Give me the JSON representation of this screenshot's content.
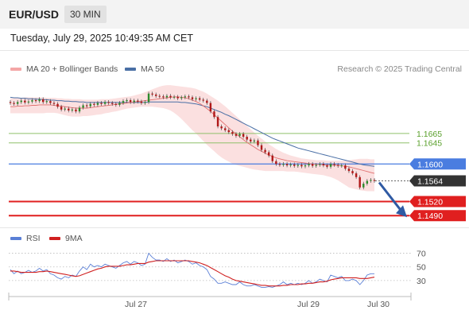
{
  "header": {
    "symbol": "EUR/USD",
    "timeframe": "30 MIN"
  },
  "datetime": "Tuesday, July 29, 2025 10:49:35 AM CET",
  "credit": "Research © 2025 Trading Central",
  "colors": {
    "bollinger": "#f4a6a6",
    "ma20": "#e07070",
    "ma50": "#4a6fa5",
    "support_red": "#e01f1f",
    "resistance_green": "#8fc06a",
    "pivot_blue": "#4a7de0",
    "last_price": "#333333",
    "rsi": "#5a7fd6",
    "rsi_ma": "#d02020",
    "candle_up": "#2d8c2d",
    "candle_down": "#b01818"
  },
  "chart_data": [
    {
      "type": "candlestick",
      "legend": [
        {
          "name": "MA 20 + Bollinger Bands",
          "color": "#f4a6a6"
        },
        {
          "name": "MA 50",
          "color": "#4a6fa5"
        }
      ],
      "ylim": [
        1.147,
        1.178
      ],
      "x_ticks": [
        "Jul 27",
        "Jul 29",
        "Jul 30"
      ],
      "levels": [
        {
          "value": 1.1665,
          "label": "1.1665",
          "kind": "resistance"
        },
        {
          "value": 1.1645,
          "label": "1.1645",
          "kind": "resistance"
        },
        {
          "value": 1.16,
          "label": "1.1600",
          "kind": "pivot"
        },
        {
          "value": 1.1564,
          "label": "1.1564",
          "kind": "last"
        },
        {
          "value": 1.152,
          "label": "1.1520",
          "kind": "support"
        },
        {
          "value": 1.149,
          "label": "1.1490",
          "kind": "support"
        }
      ],
      "close": [
        1.173,
        1.1728,
        1.1732,
        1.1735,
        1.1731,
        1.1733,
        1.1736,
        1.1734,
        1.1738,
        1.1732,
        1.1734,
        1.173,
        1.1728,
        1.1722,
        1.1716,
        1.1718,
        1.1714,
        1.1716,
        1.1712,
        1.172,
        1.1725,
        1.1723,
        1.1728,
        1.1726,
        1.173,
        1.1728,
        1.1732,
        1.173,
        1.1728,
        1.1726,
        1.173,
        1.1734,
        1.1736,
        1.1732,
        1.1735,
        1.1733,
        1.173,
        1.1732,
        1.175,
        1.1748,
        1.1745,
        1.1744,
        1.1742,
        1.1745,
        1.1742,
        1.1743,
        1.174,
        1.1742,
        1.1744,
        1.1742,
        1.1738,
        1.174,
        1.1737,
        1.1735,
        1.173,
        1.1712,
        1.17,
        1.168,
        1.1676,
        1.1672,
        1.1668,
        1.1664,
        1.166,
        1.1664,
        1.1658,
        1.1652,
        1.1648,
        1.165,
        1.164,
        1.163,
        1.1625,
        1.1618,
        1.1606,
        1.16,
        1.1598,
        1.16,
        1.1597,
        1.1599,
        1.1596,
        1.1598,
        1.1595,
        1.1597,
        1.16,
        1.1596,
        1.1598,
        1.16,
        1.1597,
        1.1594,
        1.16,
        1.1598,
        1.1596,
        1.1597,
        1.159,
        1.1585,
        1.158,
        1.1572,
        1.155,
        1.1558,
        1.1564,
        1.1566,
        1.1564
      ],
      "ma20": [
        1.1722,
        1.1722,
        1.1723,
        1.1723,
        1.1724,
        1.1724,
        1.1725,
        1.1725,
        1.1726,
        1.1726,
        1.1726,
        1.1726,
        1.1725,
        1.1724,
        1.1723,
        1.1722,
        1.1721,
        1.172,
        1.1719,
        1.1719,
        1.1719,
        1.1719,
        1.172,
        1.1721,
        1.1722,
        1.1723,
        1.1724,
        1.1725,
        1.1726,
        1.1727,
        1.1728,
        1.1729,
        1.173,
        1.1731,
        1.1732,
        1.1733,
        1.1734,
        1.1735,
        1.1736,
        1.1737,
        1.1738,
        1.1739,
        1.174,
        1.1741,
        1.1742,
        1.1743,
        1.1743,
        1.1742,
        1.1741,
        1.1739,
        1.1736,
        1.1733,
        1.1729,
        1.1724,
        1.1718,
        1.1712,
        1.1705,
        1.1698,
        1.1691,
        1.1684,
        1.1677,
        1.167,
        1.1664,
        1.1658,
        1.1652,
        1.1646,
        1.1641,
        1.1636,
        1.1631,
        1.1627,
        1.1623,
        1.1619,
        1.1616,
        1.1613,
        1.1611,
        1.1609,
        1.1607,
        1.1606,
        1.1605,
        1.1604,
        1.1603,
        1.1602,
        1.1601,
        1.16,
        1.1599,
        1.1599,
        1.1598,
        1.1598,
        1.1598,
        1.1597,
        1.1597,
        1.1596,
        1.1595,
        1.1594,
        1.1592,
        1.159,
        1.1588,
        1.1586,
        1.1584,
        1.1582,
        1.158
      ],
      "bb_upper": [
        1.174,
        1.174,
        1.1741,
        1.1741,
        1.1742,
        1.1742,
        1.1742,
        1.1742,
        1.1742,
        1.1742,
        1.1741,
        1.1741,
        1.1741,
        1.174,
        1.174,
        1.1739,
        1.1739,
        1.1738,
        1.1738,
        1.1738,
        1.1737,
        1.1737,
        1.1737,
        1.1737,
        1.1737,
        1.1738,
        1.1738,
        1.1738,
        1.1739,
        1.174,
        1.1741,
        1.1742,
        1.1743,
        1.1744,
        1.1746,
        1.1748,
        1.175,
        1.1753,
        1.1756,
        1.1759,
        1.1762,
        1.1765,
        1.1767,
        1.1768,
        1.1768,
        1.1767,
        1.1766,
        1.1765,
        1.1764,
        1.1763,
        1.1762,
        1.176,
        1.1757,
        1.1754,
        1.175,
        1.1745,
        1.174,
        1.1735,
        1.1729,
        1.1723,
        1.1716,
        1.1709,
        1.1702,
        1.1695,
        1.1688,
        1.1681,
        1.1674,
        1.1667,
        1.166,
        1.1654,
        1.1648,
        1.1642,
        1.1637,
        1.1632,
        1.1628,
        1.1624,
        1.1621,
        1.1618,
        1.1616,
        1.1614,
        1.1612,
        1.1611,
        1.161,
        1.1609,
        1.1608,
        1.1608,
        1.1608,
        1.1607,
        1.1607,
        1.1607,
        1.1607,
        1.1607,
        1.1607,
        1.1608,
        1.1609,
        1.161,
        1.1611,
        1.1611,
        1.1611,
        1.161,
        1.161
      ],
      "bb_lower": [
        1.1708,
        1.1708,
        1.1708,
        1.1708,
        1.1708,
        1.1708,
        1.1708,
        1.1708,
        1.1708,
        1.1708,
        1.1709,
        1.1709,
        1.1709,
        1.1708,
        1.1706,
        1.1704,
        1.1702,
        1.1701,
        1.1701,
        1.1701,
        1.1702,
        1.1702,
        1.1703,
        1.1704,
        1.1705,
        1.1706,
        1.1708,
        1.1709,
        1.1711,
        1.1712,
        1.1714,
        1.1716,
        1.1718,
        1.1719,
        1.172,
        1.1721,
        1.1722,
        1.1722,
        1.1722,
        1.1722,
        1.1721,
        1.172,
        1.1719,
        1.1717,
        1.1714,
        1.1709,
        1.1703,
        1.1696,
        1.1688,
        1.168,
        1.1672,
        1.1665,
        1.1657,
        1.1649,
        1.1641,
        1.1634,
        1.1627,
        1.162,
        1.1614,
        1.1609,
        1.1605,
        1.1601,
        1.1598,
        1.1596,
        1.1594,
        1.1592,
        1.159,
        1.1588,
        1.1587,
        1.1586,
        1.1585,
        1.1585,
        1.1585,
        1.1585,
        1.1585,
        1.1585,
        1.1584,
        1.1584,
        1.1584,
        1.1583,
        1.1582,
        1.1581,
        1.158,
        1.1579,
        1.1578,
        1.1577,
        1.1576,
        1.1574,
        1.1572,
        1.1569,
        1.1565,
        1.156,
        1.1555,
        1.155,
        1.1548,
        1.1546,
        1.1544,
        1.1543,
        1.1542,
        1.1542,
        1.1542
      ],
      "ma50": [
        1.1742,
        1.1741,
        1.1741,
        1.174,
        1.174,
        1.1739,
        1.1739,
        1.1738,
        1.1738,
        1.1737,
        1.1737,
        1.1736,
        1.1736,
        1.1735,
        1.1735,
        1.1734,
        1.1734,
        1.1733,
        1.1733,
        1.1732,
        1.1732,
        1.1731,
        1.1731,
        1.1731,
        1.1731,
        1.1731,
        1.1731,
        1.1731,
        1.1731,
        1.1731,
        1.1731,
        1.1731,
        1.1731,
        1.1731,
        1.1731,
        1.1731,
        1.1731,
        1.1731,
        1.1732,
        1.1732,
        1.1732,
        1.1732,
        1.1732,
        1.1732,
        1.1732,
        1.1732,
        1.1732,
        1.1731,
        1.1731,
        1.173,
        1.1729,
        1.1728,
        1.1726,
        1.1724,
        1.1722,
        1.1719,
        1.1716,
        1.1713,
        1.171,
        1.1706,
        1.1703,
        1.1699,
        1.1695,
        1.1691,
        1.1687,
        1.1683,
        1.1679,
        1.1675,
        1.1671,
        1.1667,
        1.1663,
        1.1659,
        1.1655,
        1.1652,
        1.1649,
        1.1646,
        1.1643,
        1.164,
        1.1637,
        1.1634,
        1.1632,
        1.163,
        1.1628,
        1.1626,
        1.1624,
        1.1622,
        1.162,
        1.1618,
        1.1616,
        1.1614,
        1.1612,
        1.161,
        1.1608,
        1.1606,
        1.1604,
        1.1602,
        1.16,
        1.1598,
        1.1597,
        1.1596,
        1.1595
      ],
      "forecast": {
        "from": 1.1564,
        "to": 1.149
      }
    },
    {
      "type": "line",
      "legend": [
        {
          "name": "RSI",
          "color": "#5a7fd6"
        },
        {
          "name": "9MA",
          "color": "#d02020"
        }
      ],
      "ylim": [
        10,
        80
      ],
      "y_ticks": [
        "70",
        "50",
        "30"
      ],
      "rsi": [
        46,
        40,
        44,
        40,
        42,
        45,
        42,
        44,
        48,
        44,
        46,
        40,
        38,
        34,
        32,
        36,
        34,
        38,
        36,
        44,
        50,
        46,
        54,
        50,
        52,
        50,
        54,
        52,
        50,
        48,
        52,
        56,
        58,
        54,
        58,
        56,
        52,
        54,
        70,
        64,
        60,
        60,
        58,
        62,
        58,
        60,
        56,
        58,
        60,
        58,
        54,
        56,
        52,
        50,
        46,
        36,
        32,
        26,
        26,
        28,
        26,
        24,
        24,
        28,
        24,
        22,
        22,
        24,
        22,
        20,
        20,
        21,
        20,
        22,
        24,
        28,
        24,
        26,
        24,
        26,
        24,
        26,
        30,
        26,
        28,
        32,
        30,
        28,
        38,
        36,
        34,
        36,
        30,
        30,
        32,
        30,
        24,
        30,
        38,
        40,
        40
      ],
      "rsi_ma": [
        44,
        44,
        43,
        42,
        42,
        42,
        42,
        42,
        43,
        43,
        44,
        43,
        42,
        41,
        40,
        39,
        38,
        37,
        36,
        37,
        39,
        41,
        43,
        45,
        47,
        48,
        50,
        51,
        51,
        51,
        51,
        52,
        53,
        53,
        54,
        55,
        55,
        55,
        57,
        58,
        59,
        59,
        59,
        59,
        59,
        59,
        59,
        59,
        59,
        59,
        58,
        57,
        56,
        54,
        52,
        49,
        46,
        43,
        40,
        37,
        35,
        32,
        30,
        29,
        28,
        27,
        26,
        25,
        24,
        23,
        23,
        22,
        22,
        22,
        22,
        23,
        23,
        24,
        24,
        24,
        25,
        25,
        26,
        26,
        27,
        28,
        28,
        29,
        31,
        32,
        33,
        34,
        34,
        34,
        34,
        34,
        33,
        33,
        33,
        34,
        35
      ]
    }
  ]
}
